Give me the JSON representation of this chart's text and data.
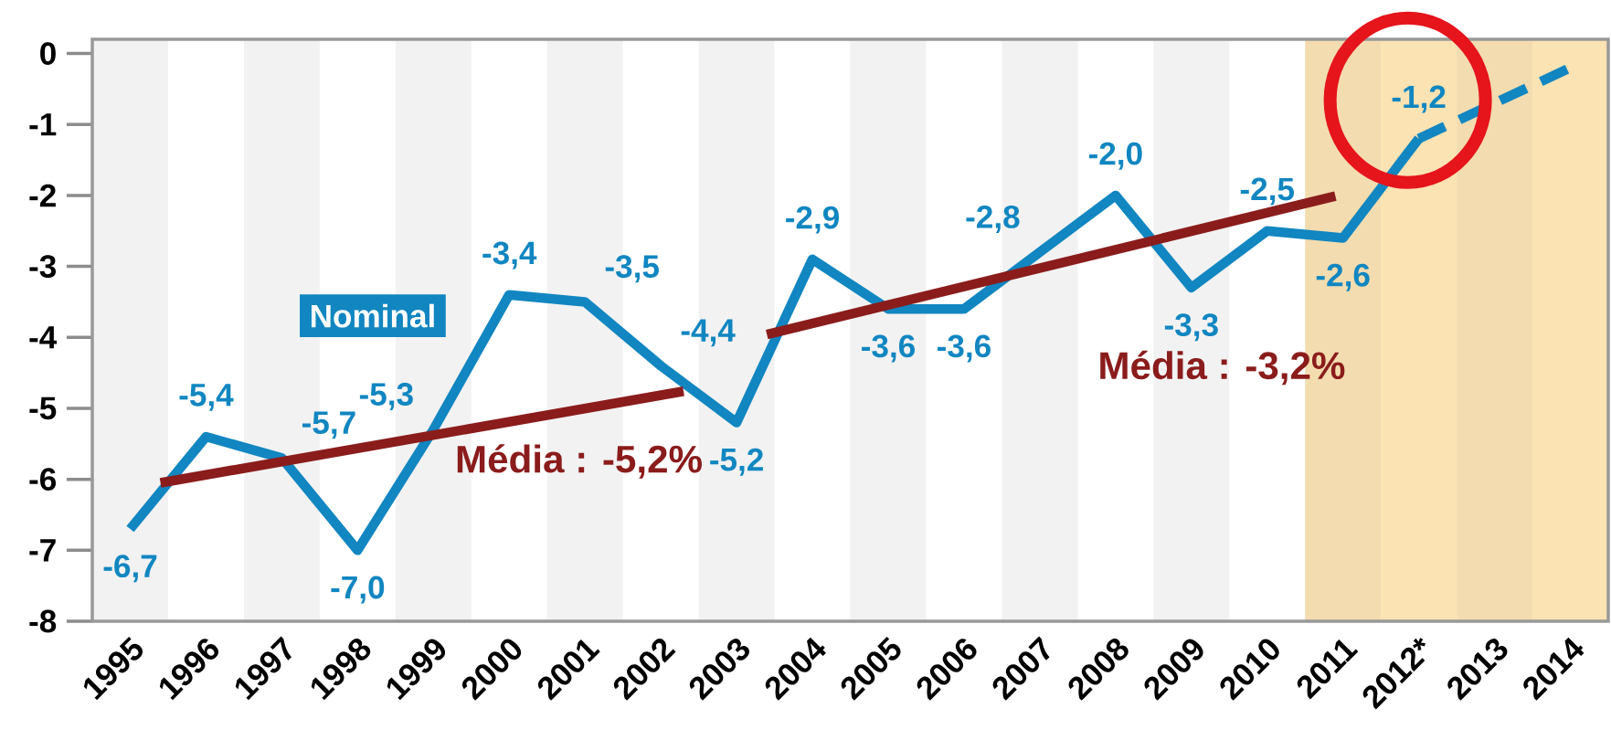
{
  "chart_data": {
    "type": "line",
    "x": [
      1995,
      1996,
      1997,
      1998,
      1999,
      2000,
      2001,
      2002,
      2003,
      2004,
      2005,
      2006,
      2007,
      2008,
      2009,
      2010,
      2011,
      2012
    ],
    "xlim": [
      1994.5,
      2014.5
    ],
    "ylim": [
      -8,
      0.2
    ],
    "xticks": [
      1995,
      1996,
      1997,
      1998,
      1999,
      2000,
      2001,
      2002,
      2003,
      2004,
      2005,
      2006,
      2007,
      2008,
      2009,
      2010,
      2011,
      {
        "value": 2012,
        "label": "2012*"
      },
      2013,
      2014
    ],
    "yticks": [
      -8,
      -7,
      -6,
      -5,
      -4,
      -3,
      -2,
      -1,
      0
    ],
    "grid": false,
    "legend": false,
    "marker": "none",
    "series": [
      {
        "name": "Nominal",
        "color": "#1186c1",
        "line_style": "solid",
        "values": [
          -6.7,
          -5.4,
          -5.7,
          -7.0,
          -5.3,
          -3.4,
          -3.5,
          -4.4,
          -5.2,
          -2.9,
          -3.6,
          -3.6,
          -2.8,
          -2.0,
          -3.3,
          -2.5,
          -2.6,
          -1.2
        ],
        "value_labels": [
          "-6,7",
          "-5,4",
          "-5,7",
          "-7,0",
          "-5,3",
          "-3,4",
          "-3,5",
          "-4,4",
          "-5,2",
          "-2,9",
          "-3,6",
          "-3,6",
          "-2,8",
          "-2,0",
          "-3,3",
          "-2,5",
          "-2,6",
          "-1,2"
        ]
      },
      {
        "color": "#1186c1",
        "line_style": "dashed",
        "x": [
          2012,
          2013,
          2014
        ],
        "values": [
          -1.2,
          -0.7,
          -0.2
        ]
      },
      {
        "name": "Média : -5,2%",
        "color": "#8b1c1c",
        "line_style": "solid",
        "x": [
          1995.4,
          2002.3
        ],
        "values": [
          -6.05,
          -4.76
        ]
      },
      {
        "name": "Média : -3,2%",
        "color": "#8b1c1c",
        "line_style": "solid",
        "x": [
          2003.4,
          2010.9
        ],
        "values": [
          -3.96,
          -2.01
        ]
      }
    ],
    "bands": [
      {
        "axis": "x",
        "from": 1994.5,
        "to": 1995.5,
        "color": "#f2f2f2"
      },
      {
        "axis": "x",
        "from": 1996.5,
        "to": 1997.5,
        "color": "#f2f2f2"
      },
      {
        "axis": "x",
        "from": 1998.5,
        "to": 1999.5,
        "color": "#f2f2f2"
      },
      {
        "axis": "x",
        "from": 2000.5,
        "to": 2001.5,
        "color": "#f2f2f2"
      },
      {
        "axis": "x",
        "from": 2002.5,
        "to": 2003.5,
        "color": "#f2f2f2"
      },
      {
        "axis": "x",
        "from": 2004.5,
        "to": 2005.5,
        "color": "#f2f2f2"
      },
      {
        "axis": "x",
        "from": 2006.5,
        "to": 2007.5,
        "color": "#f2f2f2"
      },
      {
        "axis": "x",
        "from": 2008.5,
        "to": 2009.5,
        "color": "#f2f2f2"
      },
      {
        "axis": "x",
        "from": 2010.5,
        "to": 2011.5,
        "color": "#f3dcb0"
      },
      {
        "axis": "x",
        "from": 2011.5,
        "to": 2012.5,
        "color": "#fbe3b3"
      },
      {
        "axis": "x",
        "from": 2012.5,
        "to": 2013.5,
        "color": "#f3dcb0"
      },
      {
        "axis": "x",
        "from": 2013.5,
        "to": 2014.5,
        "color": "#fbe3b3"
      }
    ]
  }
}
